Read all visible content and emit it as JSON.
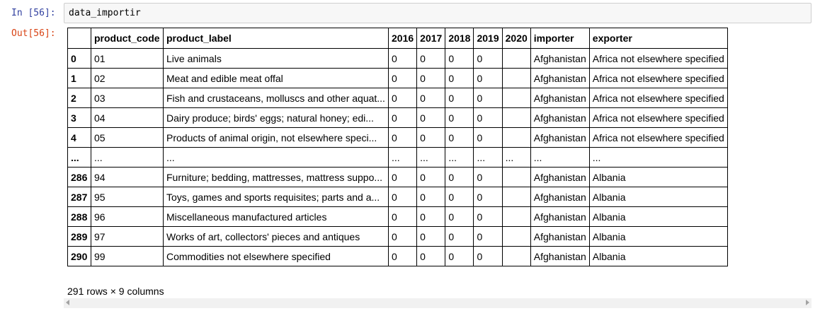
{
  "cell": {
    "in_prompt": "In [56]:",
    "out_prompt": "Out[56]:",
    "code": "data_importir"
  },
  "dataframe": {
    "columns": [
      "",
      "product_code",
      "product_label",
      "2016",
      "2017",
      "2018",
      "2019",
      "2020",
      "importer",
      "exporter"
    ],
    "rows": [
      [
        "0",
        "01",
        "Live animals",
        "0",
        "0",
        "0",
        "0",
        "",
        "Afghanistan",
        "Africa not elsewhere specified"
      ],
      [
        "1",
        "02",
        "Meat and edible meat offal",
        "0",
        "0",
        "0",
        "0",
        "",
        "Afghanistan",
        "Africa not elsewhere specified"
      ],
      [
        "2",
        "03",
        "Fish and crustaceans, molluscs and other aquat...",
        "0",
        "0",
        "0",
        "0",
        "",
        "Afghanistan",
        "Africa not elsewhere specified"
      ],
      [
        "3",
        "04",
        "Dairy produce; birds' eggs; natural honey; edi...",
        "0",
        "0",
        "0",
        "0",
        "",
        "Afghanistan",
        "Africa not elsewhere specified"
      ],
      [
        "4",
        "05",
        "Products of animal origin, not elsewhere speci...",
        "0",
        "0",
        "0",
        "0",
        "",
        "Afghanistan",
        "Africa not elsewhere specified"
      ],
      [
        "...",
        "...",
        "...",
        "...",
        "...",
        "...",
        "...",
        "...",
        "...",
        "..."
      ],
      [
        "286",
        "94",
        "Furniture; bedding, mattresses, mattress suppo...",
        "0",
        "0",
        "0",
        "0",
        "",
        "Afghanistan",
        "Albania"
      ],
      [
        "287",
        "95",
        "Toys, games and sports requisites; parts and a...",
        "0",
        "0",
        "0",
        "0",
        "",
        "Afghanistan",
        "Albania"
      ],
      [
        "288",
        "96",
        "Miscellaneous manufactured articles",
        "0",
        "0",
        "0",
        "0",
        "",
        "Afghanistan",
        "Albania"
      ],
      [
        "289",
        "97",
        "Works of art, collectors' pieces and antiques",
        "0",
        "0",
        "0",
        "0",
        "",
        "Afghanistan",
        "Albania"
      ],
      [
        "290",
        "99",
        "Commodities not elsewhere specified",
        "0",
        "0",
        "0",
        "0",
        "",
        "Afghanistan",
        "Albania"
      ]
    ],
    "summary": "291 rows × 9 columns"
  },
  "colors": {
    "in_prompt": "#303f9f",
    "out_prompt": "#d84315",
    "input_background": "#f7f7f7"
  }
}
